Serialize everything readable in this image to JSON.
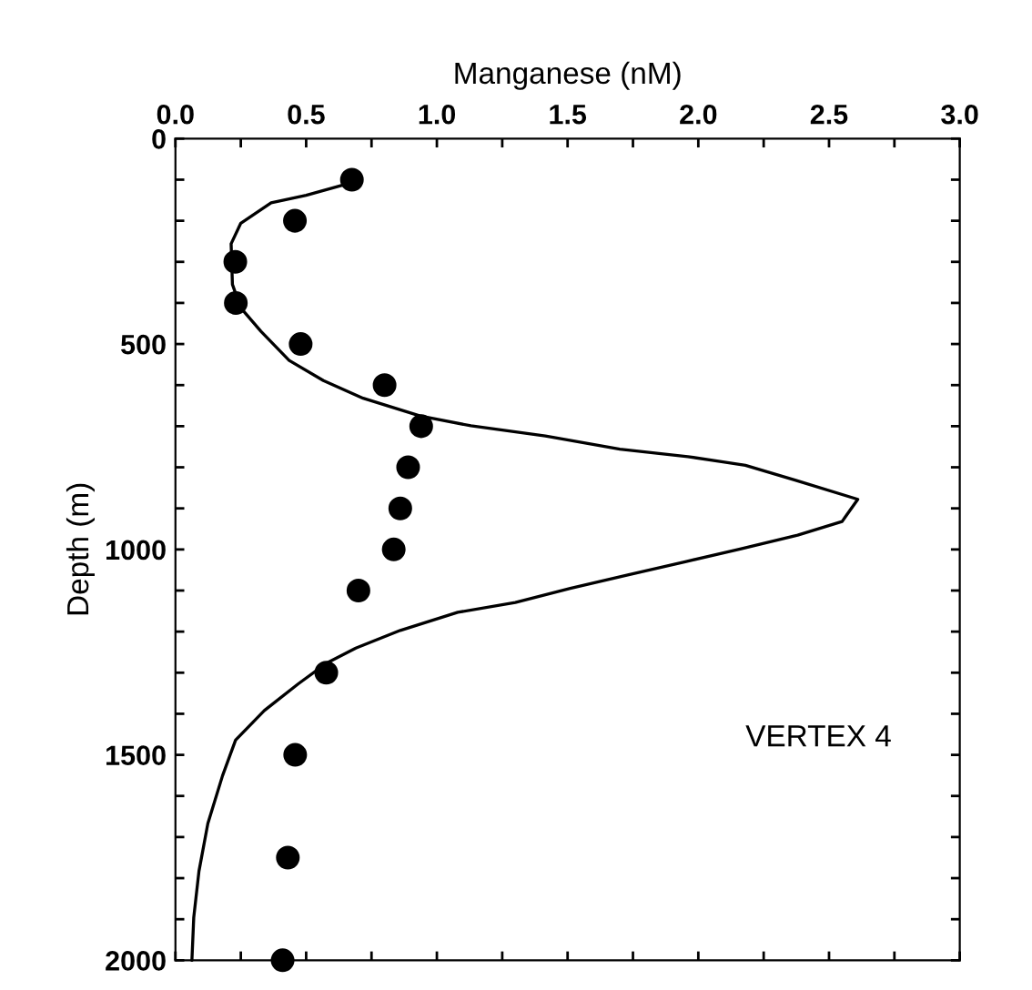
{
  "chart_data": {
    "type": "line",
    "xlabel": "Manganese (nM)",
    "ylabel": "Depth (m)",
    "xlim": [
      0,
      3
    ],
    "ylim": [
      2000,
      0
    ],
    "xticks": [
      {
        "value": 0,
        "label": "0.0"
      },
      {
        "value": 0.25,
        "label": null
      },
      {
        "value": 0.5,
        "label": "0.5"
      },
      {
        "value": 0.75,
        "label": null
      },
      {
        "value": 1,
        "label": "1.0"
      },
      {
        "value": 1.25,
        "label": null
      },
      {
        "value": 1.5,
        "label": "1.5"
      },
      {
        "value": 1.75,
        "label": null
      },
      {
        "value": 2,
        "label": "2.0"
      },
      {
        "value": 2.25,
        "label": null
      },
      {
        "value": 2.5,
        "label": "2.5"
      },
      {
        "value": 2.75,
        "label": null
      },
      {
        "value": 3,
        "label": "3.0"
      }
    ],
    "yticks": [
      0,
      {
        "value": 100,
        "label": null
      },
      {
        "value": 200,
        "label": null
      },
      {
        "value": 300,
        "label": null
      },
      {
        "value": 400,
        "label": null
      },
      500,
      {
        "value": 600,
        "label": null
      },
      {
        "value": 700,
        "label": null
      },
      {
        "value": 800,
        "label": null
      },
      {
        "value": 900,
        "label": null
      },
      1000,
      {
        "value": 1100,
        "label": null
      },
      {
        "value": 1200,
        "label": null
      },
      {
        "value": 1300,
        "label": null
      },
      {
        "value": 1400,
        "label": null
      },
      1500,
      {
        "value": 1600,
        "label": null
      },
      {
        "value": 1700,
        "label": null
      },
      {
        "value": 1800,
        "label": null
      },
      {
        "value": 1900,
        "label": null
      },
      2000
    ],
    "grid": false,
    "legend": false,
    "annotations": [
      "VERTEX 4"
    ],
    "series": [
      {
        "color": "#000000",
        "marker": "none",
        "x": [
          0.675,
          0.5,
          0.366,
          0.25,
          0.213,
          0.218,
          0.25,
          0.327,
          0.435,
          0.566,
          0.718,
          0.936,
          1.13,
          1.415,
          1.7,
          1.96,
          2.18,
          2.37,
          2.61,
          2.56,
          2.55,
          2.38,
          2.16,
          1.95,
          1.73,
          1.51,
          1.3,
          1.08,
          0.86,
          0.69,
          0.58,
          0.47,
          0.34,
          0.23,
          0.18,
          0.124,
          0.09,
          0.07,
          0.063
        ],
        "values": [
          107,
          138,
          156,
          206,
          256,
          355,
          412,
          469,
          540,
          589,
          632,
          675,
          699,
          724,
          756,
          774,
          795,
          831,
          878,
          923,
          932,
          965,
          999,
          1030,
          1062,
          1095,
          1129,
          1153,
          1197,
          1240,
          1276,
          1327,
          1392,
          1464,
          1551,
          1667,
          1783,
          1896,
          2000
        ]
      },
      {
        "type": "scatter",
        "color": "#000000",
        "marker": "circle",
        "x": [
          0.675,
          0.457,
          0.229,
          0.231,
          0.479,
          0.8,
          0.94,
          0.89,
          0.86,
          0.835,
          0.7,
          0.577,
          0.458,
          0.43,
          0.41
        ],
        "values": [
          100,
          200,
          300,
          400,
          500,
          600,
          700,
          800,
          900,
          1000,
          1100,
          1300,
          1500,
          1750,
          2000
        ]
      }
    ]
  }
}
